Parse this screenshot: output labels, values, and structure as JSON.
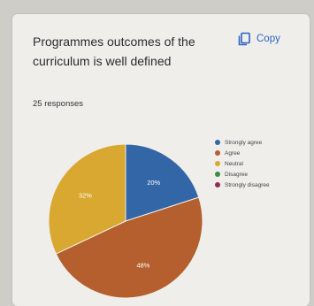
{
  "card": {
    "title": "Programmes outcomes of the curriculum is well defined",
    "copy_label": "Copy",
    "responses": "25 responses"
  },
  "icons": {
    "copy": "copy-icon"
  },
  "chart_data": {
    "type": "pie",
    "categories": [
      "Strongly agree",
      "Agree",
      "Neutral",
      "Disagree",
      "Strongly disagree"
    ],
    "values": [
      20,
      48,
      32,
      0,
      0
    ],
    "labels": [
      "20%",
      "48%",
      "32%",
      "",
      ""
    ],
    "colors": [
      "#3366a6",
      "#b45f2d",
      "#d8a830",
      "#3e8a47",
      "#8a2f55"
    ],
    "legend_position": "right"
  }
}
